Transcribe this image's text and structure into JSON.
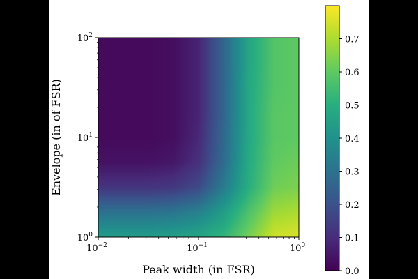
{
  "chart_data": {
    "type": "heatmap",
    "title": "",
    "xlabel": "Peak width (in FSR)",
    "ylabel": "Envelope  (in of FSR)",
    "x_scale": "log",
    "y_scale": "log",
    "xlim": [
      0.01,
      1.0
    ],
    "ylim": [
      1.0,
      100.0
    ],
    "x_ticks": [
      {
        "base": "10",
        "exp": "−2",
        "value": 0.01
      },
      {
        "base": "10",
        "exp": "−1",
        "value": 0.1
      },
      {
        "base": "10",
        "exp": "0",
        "value": 1.0
      }
    ],
    "y_ticks": [
      {
        "base": "10",
        "exp": "0",
        "value": 1.0
      },
      {
        "base": "10",
        "exp": "1",
        "value": 10.0
      },
      {
        "base": "10",
        "exp": "2",
        "value": 100.0
      }
    ],
    "colorbar": {
      "colormap": "viridis",
      "range": [
        0.0,
        0.8
      ],
      "ticks": [
        "0.0",
        "0.1",
        "0.2",
        "0.3",
        "0.4",
        "0.5",
        "0.6",
        "0.7"
      ]
    },
    "x_samples": [
      0.01,
      0.0178,
      0.0316,
      0.0562,
      0.1,
      0.1778,
      0.3162,
      0.5623,
      1.0
    ],
    "y_samples": [
      1.0,
      1.78,
      3.16,
      5.62,
      10.0,
      17.8,
      31.6,
      56.2,
      100.0
    ],
    "z": [
      [
        0.44,
        0.44,
        0.44,
        0.45,
        0.47,
        0.52,
        0.63,
        0.74,
        0.76
      ],
      [
        0.3,
        0.3,
        0.3,
        0.31,
        0.35,
        0.44,
        0.57,
        0.68,
        0.7
      ],
      [
        0.12,
        0.12,
        0.12,
        0.13,
        0.18,
        0.33,
        0.5,
        0.62,
        0.64
      ],
      [
        0.04,
        0.04,
        0.04,
        0.05,
        0.11,
        0.28,
        0.49,
        0.6,
        0.62
      ],
      [
        0.02,
        0.02,
        0.02,
        0.03,
        0.09,
        0.27,
        0.48,
        0.59,
        0.6
      ],
      [
        0.02,
        0.02,
        0.02,
        0.03,
        0.08,
        0.26,
        0.48,
        0.59,
        0.6
      ],
      [
        0.02,
        0.02,
        0.02,
        0.03,
        0.08,
        0.26,
        0.48,
        0.58,
        0.6
      ],
      [
        0.02,
        0.02,
        0.02,
        0.03,
        0.08,
        0.26,
        0.47,
        0.58,
        0.6
      ],
      [
        0.02,
        0.02,
        0.02,
        0.03,
        0.08,
        0.26,
        0.47,
        0.58,
        0.6
      ]
    ],
    "colors": {
      "frame": "#000000",
      "background": "#ffffff",
      "margin": "#000000"
    }
  }
}
